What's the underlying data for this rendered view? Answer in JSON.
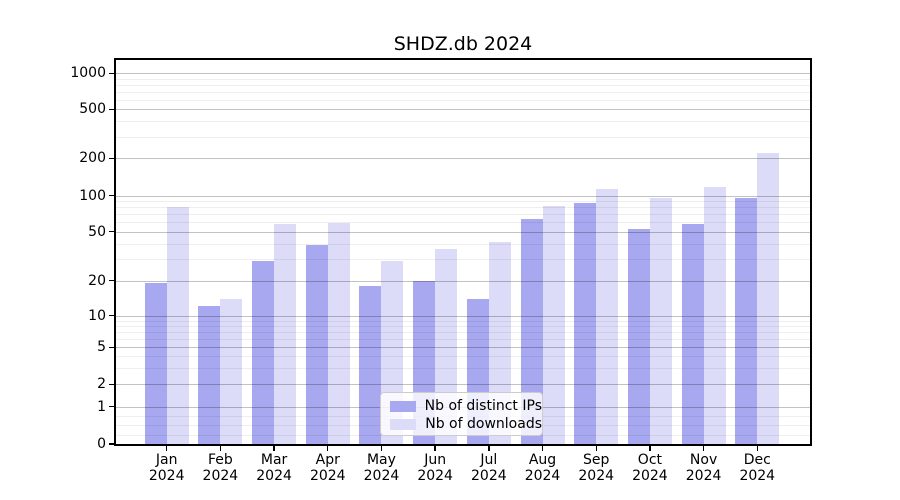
{
  "chart_data": {
    "type": "bar",
    "title": "SHDZ.db 2024",
    "categories": [
      "Jan",
      "Feb",
      "Mar",
      "Apr",
      "May",
      "Jun",
      "Jul",
      "Aug",
      "Sep",
      "Oct",
      "Nov",
      "Dec"
    ],
    "year_label": "2024",
    "series": [
      {
        "name": "Nb of distinct IPs",
        "color": "#a8a8f0",
        "values": [
          19,
          12,
          29,
          39,
          18,
          20,
          14,
          64,
          86,
          53,
          58,
          96
        ]
      },
      {
        "name": "Nb of downloads",
        "color": "#dcdcf8",
        "values": [
          80,
          14,
          58,
          59,
          29,
          36,
          41,
          82,
          113,
          96,
          118,
          220
        ]
      }
    ],
    "y_ticks": [
      0,
      1,
      2,
      5,
      10,
      20,
      50,
      100,
      200,
      500,
      1000
    ],
    "y_scale": "symlog",
    "ylim": [
      0,
      1200
    ],
    "xlabel": "",
    "ylabel": "",
    "grid": true,
    "legend_position": "lower center"
  }
}
